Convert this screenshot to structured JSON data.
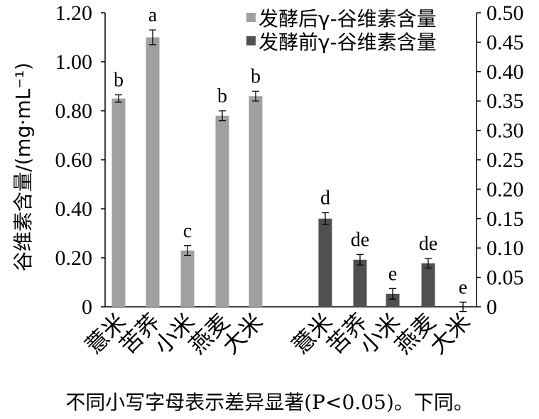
{
  "chart_data": {
    "type": "bar",
    "ylabel": "谷维素含量/(mg·mL⁻¹)",
    "left_axis": {
      "ylim": [
        0,
        1.2
      ],
      "ticks": [
        "0",
        "0.20",
        "0.40",
        "0.60",
        "0.80",
        "1.00",
        "1.20"
      ]
    },
    "right_axis": {
      "ylim": [
        0,
        0.5
      ],
      "ticks": [
        "0",
        "0.05",
        "0.10",
        "0.15",
        "0.20",
        "0.25",
        "0.30",
        "0.35",
        "0.40",
        "0.45",
        "0.50"
      ]
    },
    "legend_position": "top-right",
    "series": [
      {
        "name": "发酵后γ-谷维素含量",
        "axis": "left",
        "color": "#a0a0a0",
        "categories": [
          "薏米",
          "苦荞",
          "小米",
          "燕麦",
          "大米"
        ],
        "values": [
          0.85,
          1.1,
          0.23,
          0.78,
          0.86
        ],
        "errors": [
          0.015,
          0.03,
          0.02,
          0.02,
          0.02
        ],
        "labels": [
          "b",
          "a",
          "c",
          "b",
          "b"
        ]
      },
      {
        "name": "发酵前γ-谷维素含量",
        "axis": "right",
        "color": "#505050",
        "categories": [
          "薏米",
          "苦荞",
          "小米",
          "燕麦",
          "大米"
        ],
        "values": [
          0.15,
          0.08,
          0.022,
          0.074,
          0.0
        ],
        "errors": [
          0.01,
          0.009,
          0.009,
          0.008,
          0.008
        ],
        "labels": [
          "d",
          "de",
          "e",
          "de",
          "e"
        ]
      }
    ]
  },
  "caption": "不同小写字母表示差异显著(P<0.05)。下同。"
}
